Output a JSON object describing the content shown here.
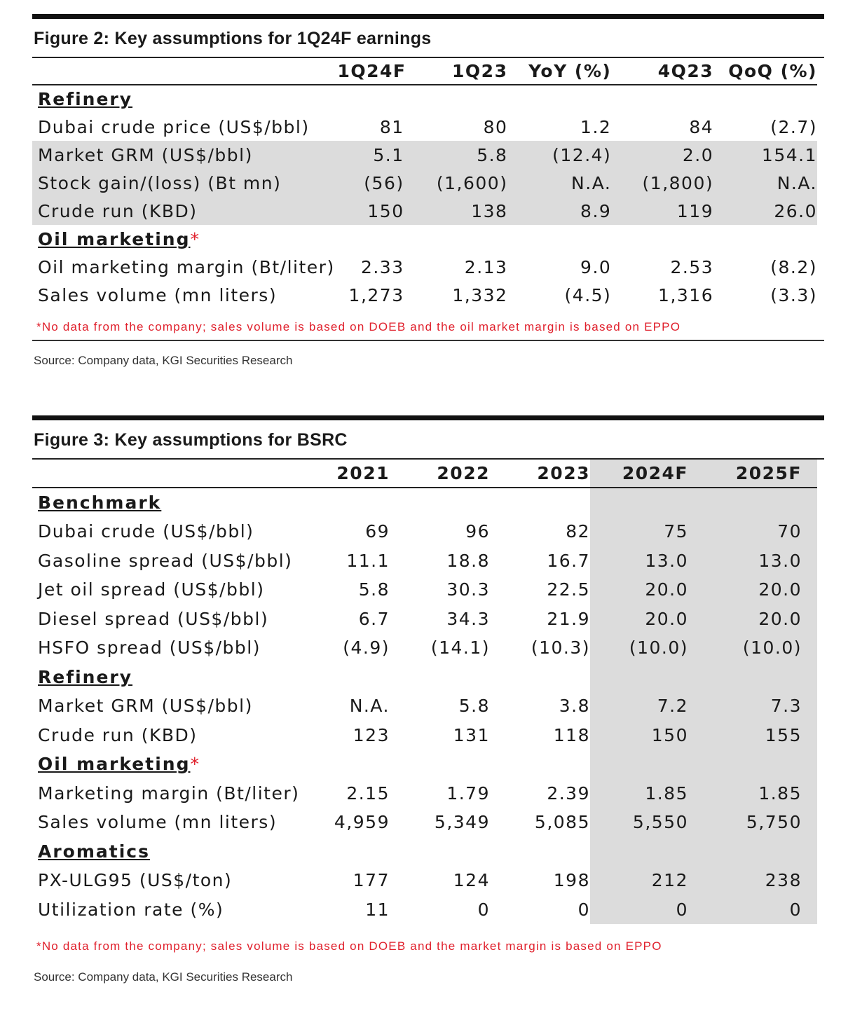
{
  "figure2": {
    "title": "Figure 2: Key assumptions for 1Q24F earnings",
    "columns": [
      "1Q24F",
      "1Q23",
      "YoY (%)",
      "4Q23",
      "QoQ (%)"
    ],
    "sections": [
      {
        "label": "Refinery",
        "asterisk": "",
        "rows": [
          {
            "label": "Dubai crude price (US$/bbl)",
            "values": [
              "81",
              "80",
              "1.2",
              "84",
              "(2.7)"
            ]
          },
          {
            "label": "Market GRM (US$/bbl)",
            "values": [
              "5.1",
              "5.8",
              "(12.4)",
              "2.0",
              "154.1"
            ]
          },
          {
            "label": "Stock gain/(loss) (Bt mn)",
            "values": [
              "(56)",
              "(1,600)",
              "N.A.",
              "(1,800)",
              "N.A."
            ]
          },
          {
            "label": "Crude run (KBD)",
            "values": [
              "150",
              "138",
              "8.9",
              "119",
              "26.0"
            ]
          }
        ]
      },
      {
        "label": "Oil marketing",
        "asterisk": "*",
        "rows": [
          {
            "label": "Oil marketing margin (Bt/liter)",
            "values": [
              "2.33",
              "2.13",
              "9.0",
              "2.53",
              "(8.2)"
            ]
          },
          {
            "label": "Sales volume (mn liters)",
            "values": [
              "1,273",
              "1,332",
              "(4.5)",
              "1,316",
              "(3.3)"
            ]
          }
        ]
      }
    ],
    "note": "*No data from the company; sales volume is based on DOEB and the oil market margin is based on EPPO",
    "source": "Source: Company data, KGI Securities Research"
  },
  "figure3": {
    "title": "Figure 3: Key assumptions for BSRC",
    "columns": [
      "2021",
      "2022",
      "2023",
      "2024F",
      "2025F"
    ],
    "sections": [
      {
        "label": "Benchmark",
        "asterisk": "",
        "rows": [
          {
            "label": "Dubai crude (US$/bbl)",
            "values": [
              "69",
              "96",
              "82",
              "75",
              "70"
            ]
          },
          {
            "label": "Gasoline spread (US$/bbl)",
            "values": [
              "11.1",
              "18.8",
              "16.7",
              "13.0",
              "13.0"
            ]
          },
          {
            "label": "Jet oil spread (US$/bbl)",
            "values": [
              "5.8",
              "30.3",
              "22.5",
              "20.0",
              "20.0"
            ]
          },
          {
            "label": "Diesel spread (US$/bbl)",
            "values": [
              "6.7",
              "34.3",
              "21.9",
              "20.0",
              "20.0"
            ]
          },
          {
            "label": "HSFO spread (US$/bbl)",
            "values": [
              "(4.9)",
              "(14.1)",
              "(10.3)",
              "(10.0)",
              "(10.0)"
            ]
          }
        ]
      },
      {
        "label": "Refinery",
        "asterisk": "",
        "rows": [
          {
            "label": "Market GRM (US$/bbl)",
            "values": [
              "N.A.",
              "5.8",
              "3.8",
              "7.2",
              "7.3"
            ]
          },
          {
            "label": "Crude run (KBD)",
            "values": [
              "123",
              "131",
              "118",
              "150",
              "155"
            ]
          }
        ]
      },
      {
        "label": "Oil marketing",
        "asterisk": "*",
        "rows": [
          {
            "label": "Marketing margin (Bt/liter)",
            "values": [
              "2.15",
              "1.79",
              "2.39",
              "1.85",
              "1.85"
            ]
          },
          {
            "label": "Sales volume (mn liters)",
            "values": [
              "4,959",
              "5,349",
              "5,085",
              "5,550",
              "5,750"
            ]
          }
        ]
      },
      {
        "label": "Aromatics",
        "asterisk": "",
        "rows": [
          {
            "label": "PX-ULG95 (US$/ton)",
            "values": [
              "177",
              "124",
              "198",
              "212",
              "238"
            ]
          },
          {
            "label": "Utilization rate (%)",
            "values": [
              "11",
              "0",
              "0",
              "0",
              "0"
            ]
          }
        ]
      }
    ],
    "note": "*No data from the company; sales volume is based on DOEB and the market margin is based on EPPO",
    "source": "Source: Company data, KGI Securities Research"
  }
}
